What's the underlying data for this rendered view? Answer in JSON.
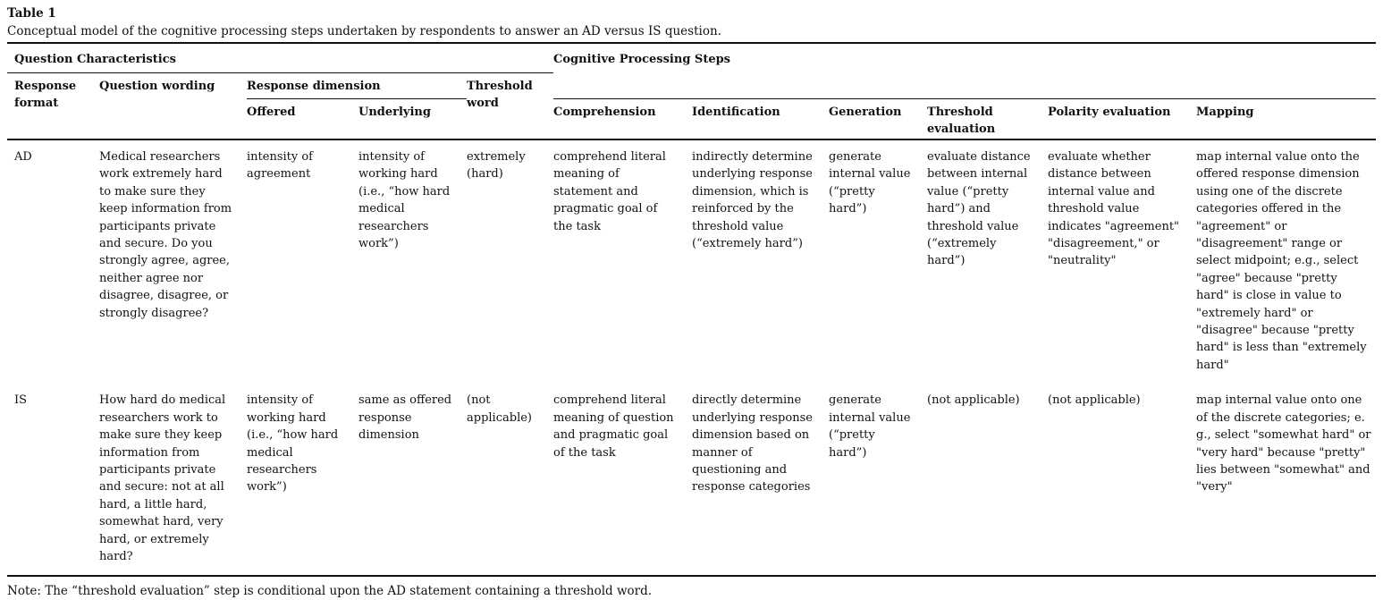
{
  "table": {
    "title": "Table 1",
    "caption": "Conceptual model of the cognitive processing steps undertaken by respondents to answer an AD versus IS question.",
    "groups": {
      "question_characteristics": "Question Characteristics",
      "cognitive_processing_steps": "Cognitive Processing Steps"
    },
    "columns": {
      "response_format": "Response format",
      "question_wording": "Question wording",
      "response_dimension": "Response dimension",
      "offered": "Offered",
      "underlying": "Underlying",
      "threshold_word": "Threshold word",
      "comprehension": "Comprehension",
      "identification": "Identification",
      "generation": "Generation",
      "threshold_evaluation": "Threshold evaluation",
      "polarity_evaluation": "Polarity evaluation",
      "mapping": "Mapping"
    },
    "rows": [
      {
        "response_format": "AD",
        "question_wording": "Medical researchers work extremely hard to make sure they keep information from participants private and secure. Do you strongly agree, agree, neither agree nor disagree, disagree, or strongly disagree?",
        "offered": "intensity of agreement",
        "underlying": "intensity of working hard (i.e., “how hard medical researchers work”)",
        "threshold_word": "extremely (hard)",
        "comprehension": "comprehend literal meaning of statement and pragmatic goal of the task",
        "identification": "indirectly determine underlying response dimension, which is reinforced by the threshold value (“extremely hard”)",
        "generation": "generate internal value (“pretty hard”)",
        "threshold_evaluation": "evaluate distance between internal value (“pretty hard”) and threshold value (“extremely hard”)",
        "polarity_evaluation": "evaluate whether distance between internal value and threshold value indicates \"agreement\" \"disagreement,\" or \"neutrality\"",
        "mapping": "map internal value onto the offered response dimension using one of the discrete categories offered in the \"agreement\" or \"disagreement\" range or select midpoint; e.g., select \"agree\" because \"pretty hard\" is close in value to \"extremely hard\" or \"disagree\" because \"pretty hard\" is less than \"extremely hard\""
      },
      {
        "response_format": "IS",
        "question_wording": "How hard do medical researchers work to make sure they keep information from participants private and secure: not at all hard, a little hard, somewhat hard, very hard, or extremely hard?",
        "offered": "intensity of working hard (i.e., “how hard medical researchers work”)",
        "underlying": "same as offered response dimension",
        "threshold_word": "(not applicable)",
        "comprehension": "comprehend literal meaning of question and pragmatic goal of the task",
        "identification": "directly determine underlying response dimension based on manner of questioning and response categories",
        "generation": "generate internal value (“pretty hard”)",
        "threshold_evaluation": "(not applicable)",
        "polarity_evaluation": "(not applicable)",
        "mapping": "map internal value onto one of the discrete categories; e. g., select \"somewhat hard\" or \"very hard\" because \"pretty\" lies between \"somewhat\" and \"very\""
      }
    ],
    "note": "Note: The “threshold evaluation” step is conditional upon the AD statement containing a threshold word."
  }
}
